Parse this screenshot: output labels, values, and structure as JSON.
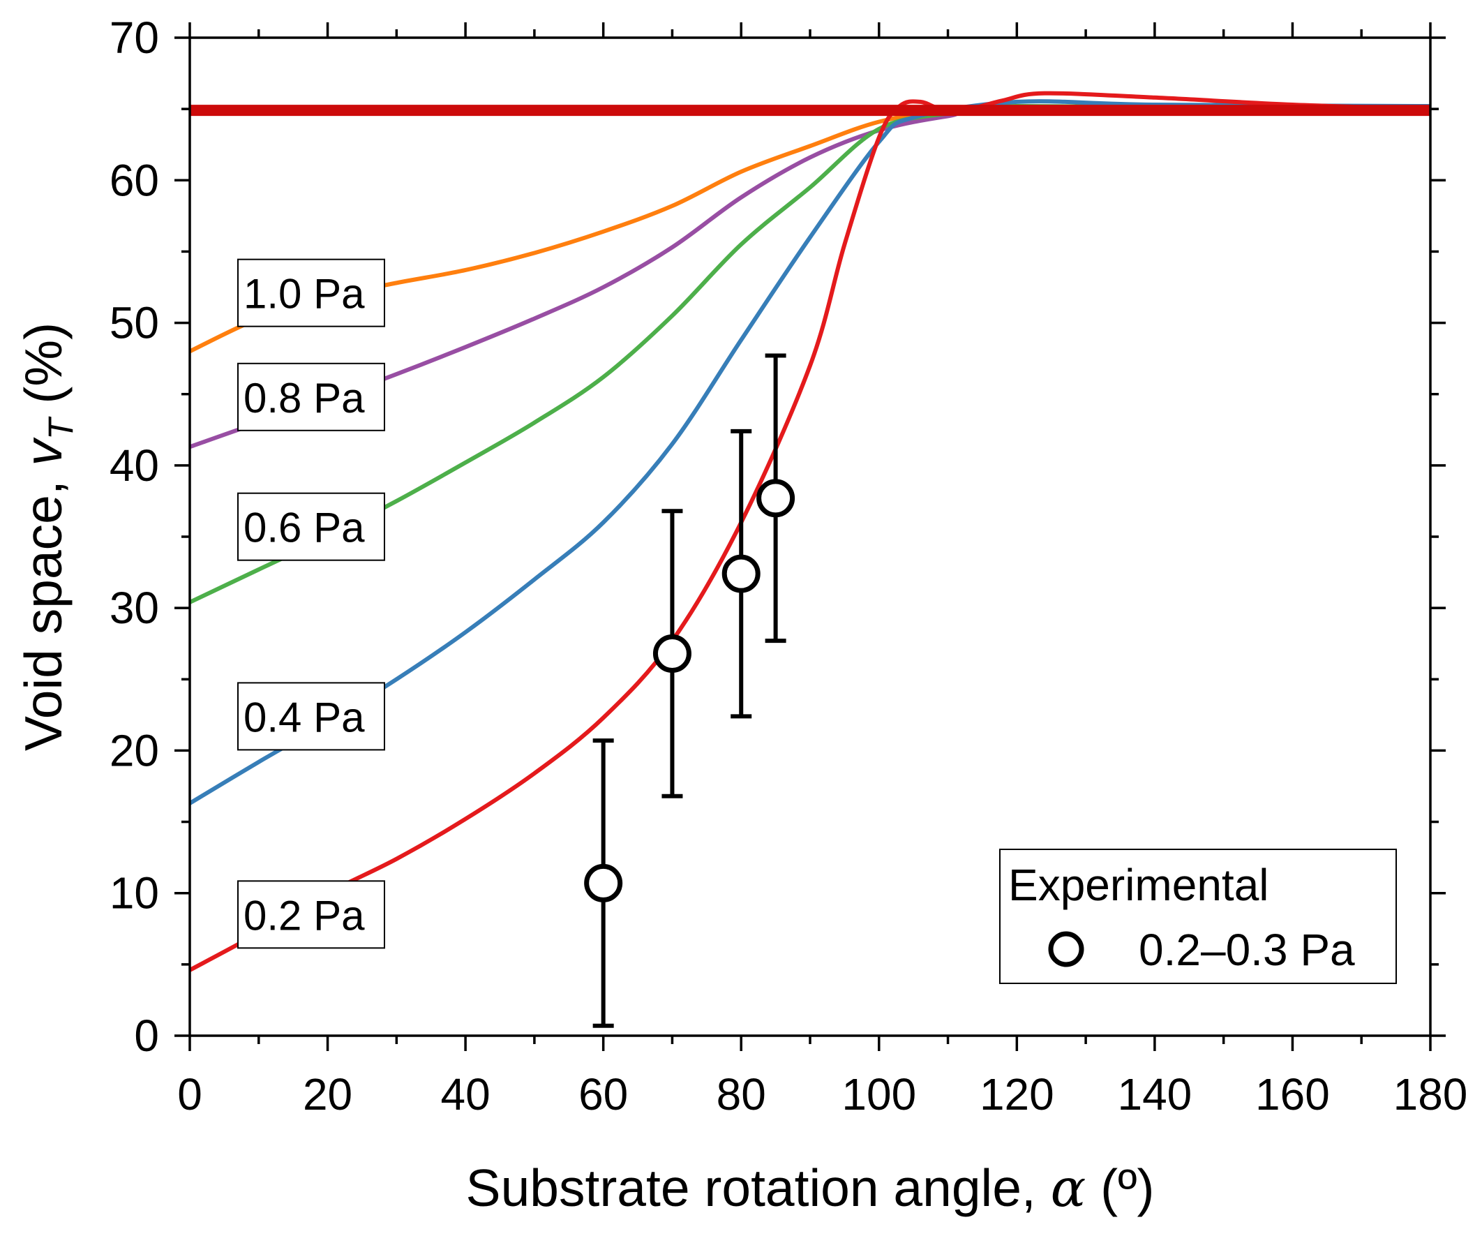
{
  "chart_data": {
    "type": "line",
    "title": "",
    "xlabel": "Substrate rotation angle, α (º)",
    "xlabel_parts": {
      "pre": "Substrate rotation angle, ",
      "sym": "α",
      "post": " (º)"
    },
    "ylabel_parts": {
      "pre": "Void space, ",
      "sym": "v",
      "sub": "T",
      "post": " (%)"
    },
    "xlim": [
      0,
      180
    ],
    "ylim": [
      0,
      70
    ],
    "xticks": [
      "0",
      "20",
      "40",
      "60",
      "80",
      "100",
      "120",
      "140",
      "160",
      "180"
    ],
    "yticks": [
      "0",
      "10",
      "20",
      "30",
      "40",
      "50",
      "60",
      "70"
    ],
    "grid": false,
    "reference_line": {
      "y": 64.9,
      "color": "#cc0a0a"
    },
    "series": [
      {
        "name": "1.0 Pa",
        "color": "#ff7f0e",
        "x": [
          0,
          10,
          20,
          30,
          40,
          50,
          60,
          70,
          80,
          90,
          100,
          110,
          120,
          180
        ],
        "y": [
          48,
          50.3,
          51.8,
          52.8,
          53.7,
          54.9,
          56.4,
          58.2,
          60.6,
          62.4,
          64.1,
          64.9,
          65,
          65
        ]
      },
      {
        "name": "0.8 Pa",
        "color": "#984ea3",
        "x": [
          0,
          10,
          20,
          30,
          40,
          50,
          60,
          70,
          80,
          90,
          100,
          110,
          120,
          180
        ],
        "y": [
          41.3,
          43,
          44.6,
          46.4,
          48.3,
          50.3,
          52.5,
          55.3,
          58.8,
          61.6,
          63.5,
          64.5,
          65,
          65
        ]
      },
      {
        "name": "0.6 Pa",
        "color": "#4daf4a",
        "x": [
          0,
          10,
          20,
          30,
          40,
          50,
          60,
          70,
          80,
          90,
          100,
          110,
          120,
          180
        ],
        "y": [
          30.4,
          32.7,
          35,
          37.5,
          40.2,
          43,
          46.2,
          50.5,
          55.5,
          59.5,
          63.6,
          64.7,
          65.2,
          65
        ]
      },
      {
        "name": "0.4 Pa",
        "color": "#377eb8",
        "x": [
          0,
          10,
          20,
          30,
          40,
          50,
          60,
          70,
          80,
          90,
          100,
          105,
          120,
          140,
          180
        ],
        "y": [
          16.3,
          19.2,
          22,
          25,
          28.3,
          32,
          36,
          41.5,
          48.8,
          56,
          62.7,
          64.4,
          65.5,
          65.3,
          65.2
        ]
      },
      {
        "name": "0.2 Pa",
        "color": "#e41a1c",
        "x": [
          0,
          10,
          20,
          30,
          40,
          50,
          60,
          70,
          80,
          90,
          95,
          100,
          103,
          106,
          109,
          113,
          118,
          124,
          140,
          160,
          180
        ],
        "y": [
          4.6,
          7.2,
          10,
          12.4,
          15.2,
          18.4,
          22.3,
          27.7,
          36,
          47,
          55.5,
          63,
          65.2,
          65.5,
          65,
          65,
          65.6,
          66.1,
          65.8,
          65.3,
          65
        ]
      }
    ],
    "experimental": {
      "legend_title": "Experimental",
      "name": "0.2–0.3 Pa",
      "x": [
        60,
        70,
        80,
        85
      ],
      "y": [
        10.7,
        26.8,
        32.4,
        37.7
      ],
      "yerr": [
        10,
        10,
        10,
        10
      ]
    }
  }
}
